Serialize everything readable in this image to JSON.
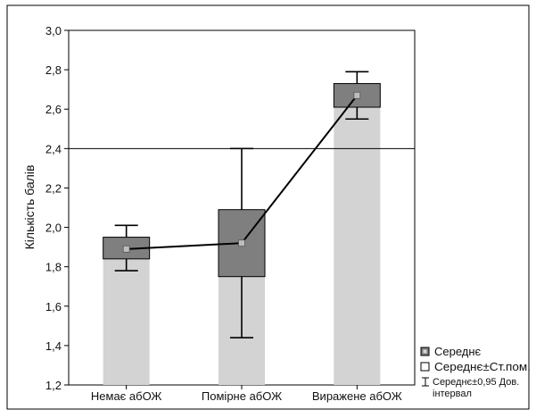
{
  "chart_data": {
    "type": "box",
    "ylabel": "Кількість балів",
    "ylim": [
      1.2,
      3.0
    ],
    "yticks": [
      "1,2",
      "1,4",
      "1,6",
      "1,8",
      "2,0",
      "2,2",
      "2,4",
      "2,6",
      "2,8",
      "3,0"
    ],
    "ytick_values": [
      1.2,
      1.4,
      1.6,
      1.8,
      2.0,
      2.2,
      2.4,
      2.6,
      2.8,
      3.0
    ],
    "categories": [
      "Немає абОЖ",
      "Помірне абОЖ",
      "Виражене абОЖ"
    ],
    "mean": [
      1.89,
      1.92,
      2.67
    ],
    "se_low": [
      1.84,
      1.75,
      2.61
    ],
    "se_high": [
      1.95,
      2.09,
      2.73
    ],
    "ci_low": [
      1.78,
      1.44,
      2.55
    ],
    "ci_high": [
      2.01,
      2.4,
      2.79
    ],
    "reference_line": 2.4,
    "grid": false,
    "legend_position": "bottom-right",
    "legend": {
      "mean": "Середнє",
      "se": "Середнє±Ст.пом.",
      "ci": "Середнє±0,95 Дов. інтервал"
    },
    "colors": {
      "bar_fill": "#d3d3d3",
      "box_fill": "#7f7f7f",
      "mean_marker": "#bdbdbd",
      "line": "#000000",
      "frame": "#000000"
    }
  }
}
